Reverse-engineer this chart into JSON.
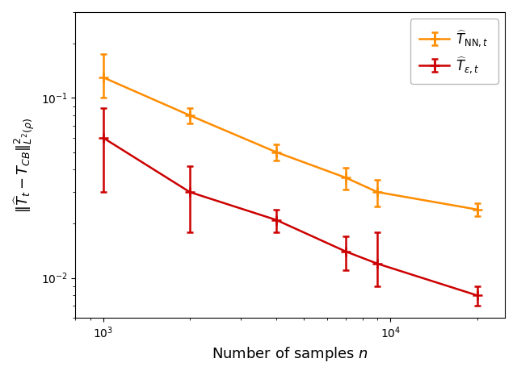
{
  "nn_x": [
    1000,
    2000,
    4000,
    7000,
    9000,
    20000
  ],
  "nn_y": [
    0.13,
    0.08,
    0.05,
    0.036,
    0.03,
    0.024
  ],
  "nn_yerr_low": [
    0.03,
    0.008,
    0.005,
    0.005,
    0.005,
    0.002
  ],
  "nn_yerr_high": [
    0.045,
    0.008,
    0.005,
    0.005,
    0.005,
    0.002
  ],
  "eot_x": [
    1000,
    2000,
    4000,
    7000,
    9000,
    20000
  ],
  "eot_y": [
    0.06,
    0.03,
    0.021,
    0.014,
    0.012,
    0.008
  ],
  "eot_yerr_low": [
    0.03,
    0.012,
    0.003,
    0.003,
    0.003,
    0.001
  ],
  "eot_yerr_high": [
    0.028,
    0.012,
    0.003,
    0.003,
    0.006,
    0.001
  ],
  "nn_color": "#FF8C00",
  "eot_color": "#CC0000",
  "xlabel": "Number of samples $n$",
  "ylabel": "$\\|\\widehat{T}_t - T_{CB}\\|^2_{L^2(\\rho)}$",
  "nn_label": "$\\widehat{T}_{\\mathrm{NN},t}$",
  "eot_label": "$\\widehat{T}_{\\varepsilon,t}$",
  "xlim": [
    800,
    25000
  ],
  "ylim": [
    0.006,
    0.3
  ],
  "figsize": [
    6.4,
    4.65
  ],
  "dpi": 100
}
